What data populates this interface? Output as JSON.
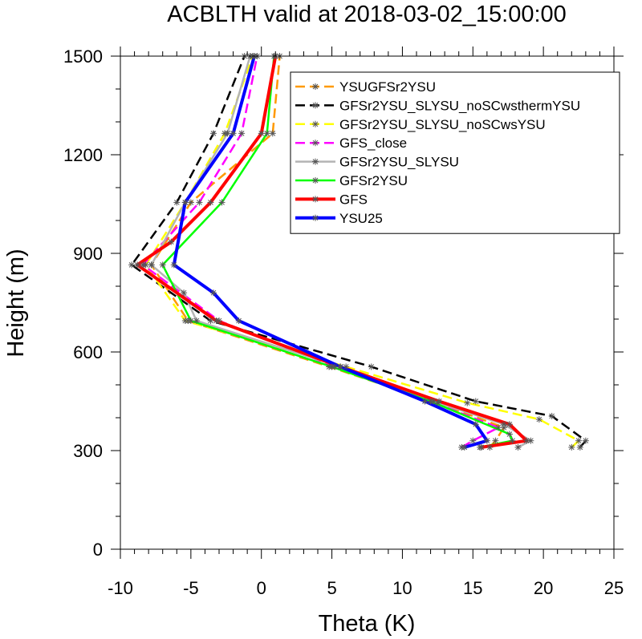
{
  "chart_data": {
    "type": "line",
    "title": "ACBLTH valid at 2018-03-02_15:00:00",
    "xlabel": "Theta (K)",
    "ylabel": "Height (m)",
    "xlim": [
      -10,
      25
    ],
    "ylim": [
      0,
      1500
    ],
    "xticks": [
      "-10",
      "-5",
      "0",
      "5",
      "10",
      "15",
      "20",
      "25"
    ],
    "yticks": [
      "0",
      "300",
      "600",
      "900",
      "1200",
      "1500"
    ],
    "legend_position": "top-right",
    "grid": false,
    "series": [
      {
        "name": "YSUGFSr2YSU",
        "color": "#ff9900",
        "dash": "dashed",
        "width": 2.5,
        "points": [
          [
            16.2,
            310
          ],
          [
            16.6,
            330
          ],
          [
            17.2,
            370
          ],
          [
            12.5,
            445
          ],
          [
            4.8,
            555
          ],
          [
            -5.2,
            695
          ],
          [
            -7.8,
            865
          ],
          [
            -5.0,
            1055
          ],
          [
            0.8,
            1265
          ],
          [
            1.3,
            1500
          ]
        ]
      },
      {
        "name": "GFSr2YSU_SLYSU_noSCwsthermYSU",
        "color": "#000000",
        "dash": "dashed",
        "width": 2.5,
        "points": [
          [
            22.6,
            310
          ],
          [
            23.0,
            330
          ],
          [
            20.6,
            405
          ],
          [
            15.2,
            450
          ],
          [
            7.8,
            555
          ],
          [
            -3.6,
            695
          ],
          [
            -9.2,
            865
          ],
          [
            -6.0,
            1055
          ],
          [
            -3.4,
            1265
          ],
          [
            -1.2,
            1500
          ]
        ]
      },
      {
        "name": "GFSr2YSU_SLYSU_noSCwsYSU",
        "color": "#ffff00",
        "dash": "dashed",
        "width": 2.5,
        "points": [
          [
            22.0,
            310
          ],
          [
            22.5,
            330
          ],
          [
            19.7,
            395
          ],
          [
            14.6,
            445
          ],
          [
            6.0,
            555
          ],
          [
            -5.4,
            695
          ],
          [
            -8.2,
            865
          ],
          [
            -5.4,
            1055
          ],
          [
            -2.6,
            1265
          ],
          [
            -0.6,
            1500
          ]
        ]
      },
      {
        "name": "GFS_close",
        "color": "#ff00ff",
        "dash": "dashed",
        "width": 2.5,
        "points": [
          [
            14.2,
            310
          ],
          [
            15.0,
            330
          ],
          [
            16.8,
            370
          ],
          [
            12.0,
            450
          ],
          [
            5.2,
            555
          ],
          [
            -3.0,
            695
          ],
          [
            -8.4,
            865
          ],
          [
            -4.4,
            1055
          ],
          [
            -1.4,
            1265
          ],
          [
            -0.3,
            1500
          ]
        ]
      },
      {
        "name": "GFSr2YSU_SLYSU",
        "color": "#b4b4b4",
        "dash": "solid",
        "width": 2.5,
        "points": [
          [
            18.2,
            310
          ],
          [
            19.1,
            330
          ],
          [
            17.2,
            380
          ],
          [
            12.2,
            450
          ],
          [
            5.6,
            555
          ],
          [
            -4.6,
            695
          ],
          [
            -5.5,
            780
          ],
          [
            -7.8,
            865
          ],
          [
            -5.4,
            1055
          ],
          [
            -2.4,
            1265
          ],
          [
            -0.8,
            1500
          ]
        ]
      },
      {
        "name": "GFSr2YSU",
        "color": "#00ff00",
        "dash": "solid",
        "width": 2.5,
        "points": [
          [
            15.5,
            310
          ],
          [
            17.8,
            330
          ],
          [
            17.6,
            350
          ],
          [
            12.0,
            450
          ],
          [
            5.0,
            555
          ],
          [
            -5.0,
            695
          ],
          [
            -7.0,
            865
          ],
          [
            -2.8,
            1055
          ],
          [
            0.4,
            1265
          ],
          [
            0.9,
            1500
          ]
        ]
      },
      {
        "name": "GFS",
        "color": "#ff0000",
        "dash": "solid",
        "width": 4,
        "points": [
          [
            15.6,
            310
          ],
          [
            18.8,
            330
          ],
          [
            17.6,
            380
          ],
          [
            12.6,
            450
          ],
          [
            5.6,
            555
          ],
          [
            -3.2,
            695
          ],
          [
            -8.8,
            865
          ],
          [
            -6.4,
            935
          ],
          [
            -3.6,
            1055
          ],
          [
            0.0,
            1265
          ],
          [
            1.0,
            1500
          ]
        ]
      },
      {
        "name": "YSU25",
        "color": "#0000ff",
        "dash": "solid",
        "width": 4,
        "points": [
          [
            14.4,
            310
          ],
          [
            16.0,
            330
          ],
          [
            15.2,
            380
          ],
          [
            11.6,
            450
          ],
          [
            5.6,
            555
          ],
          [
            -1.6,
            695
          ],
          [
            -3.4,
            780
          ],
          [
            -6.2,
            865
          ],
          [
            -5.4,
            1055
          ],
          [
            -2.0,
            1265
          ],
          [
            -0.5,
            1500
          ]
        ]
      }
    ]
  }
}
